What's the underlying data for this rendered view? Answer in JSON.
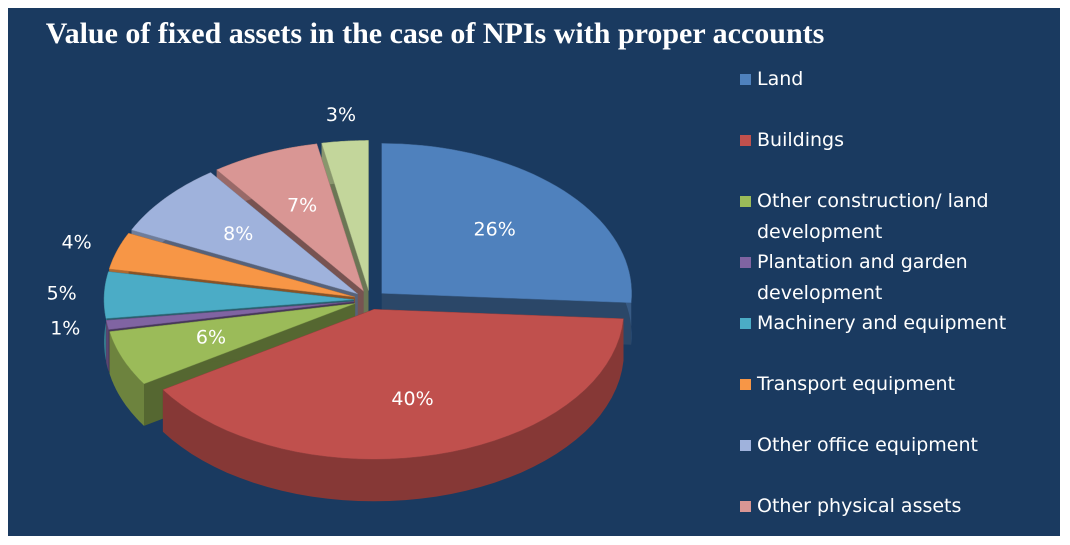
{
  "chart_data": {
    "type": "pie",
    "title": "Value of fixed assets in the case of NPIs with proper accounts",
    "categories": [
      "Land",
      "Buildings",
      "Other construction/ land development",
      "Plantation and garden development",
      "Machinery and equipment",
      "Transport equipment",
      "Other office equipment",
      "Other physical assets",
      null
    ],
    "values": [
      26,
      40,
      6,
      1,
      5,
      4,
      8,
      7,
      3
    ],
    "value_labels": [
      "26%",
      "40%",
      "6%",
      "1%",
      "5%",
      "4%",
      "8%",
      "7%",
      "3%"
    ],
    "colors": [
      "#4f81bd",
      "#c0504d",
      "#9bbb59",
      "#8064a2",
      "#4bacc6",
      "#f79646",
      "#9fb2dc",
      "#d99694",
      "#c3d69b"
    ],
    "legend": "right"
  }
}
